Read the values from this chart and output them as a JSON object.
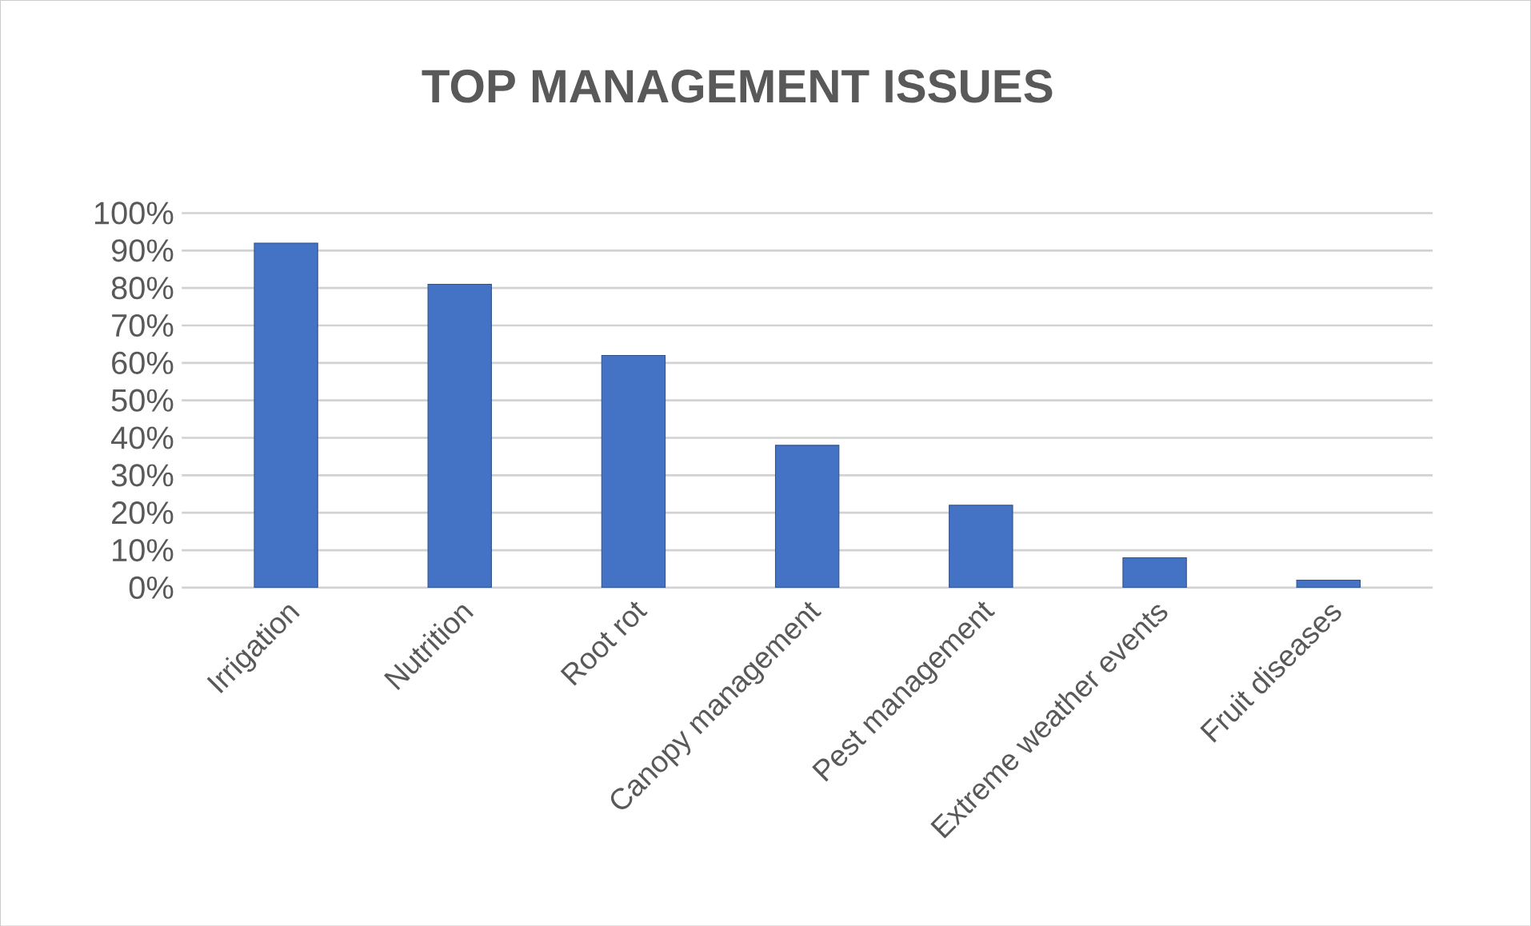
{
  "chart_data": {
    "type": "bar",
    "title": "TOP MANAGEMENT ISSUES",
    "categories": [
      "Irrigation",
      "Nutrition",
      "Root rot",
      "Canopy management",
      "Pest management",
      "Extreme weather events",
      "Fruit diseases"
    ],
    "values": [
      92,
      81,
      62,
      38,
      22,
      8,
      2
    ],
    "color": "#4472c4",
    "ylim": [
      0,
      100
    ],
    "yticks": [
      {
        "value": 0,
        "label": "0%"
      },
      {
        "value": 10,
        "label": "10%"
      },
      {
        "value": 20,
        "label": "20%"
      },
      {
        "value": 30,
        "label": "30%"
      },
      {
        "value": 40,
        "label": "40%"
      },
      {
        "value": 50,
        "label": "50%"
      },
      {
        "value": 60,
        "label": "60%"
      },
      {
        "value": 70,
        "label": "70%"
      },
      {
        "value": 80,
        "label": "80%"
      },
      {
        "value": 90,
        "label": "90%"
      },
      {
        "value": 100,
        "label": "100%"
      }
    ],
    "grid": "y"
  }
}
